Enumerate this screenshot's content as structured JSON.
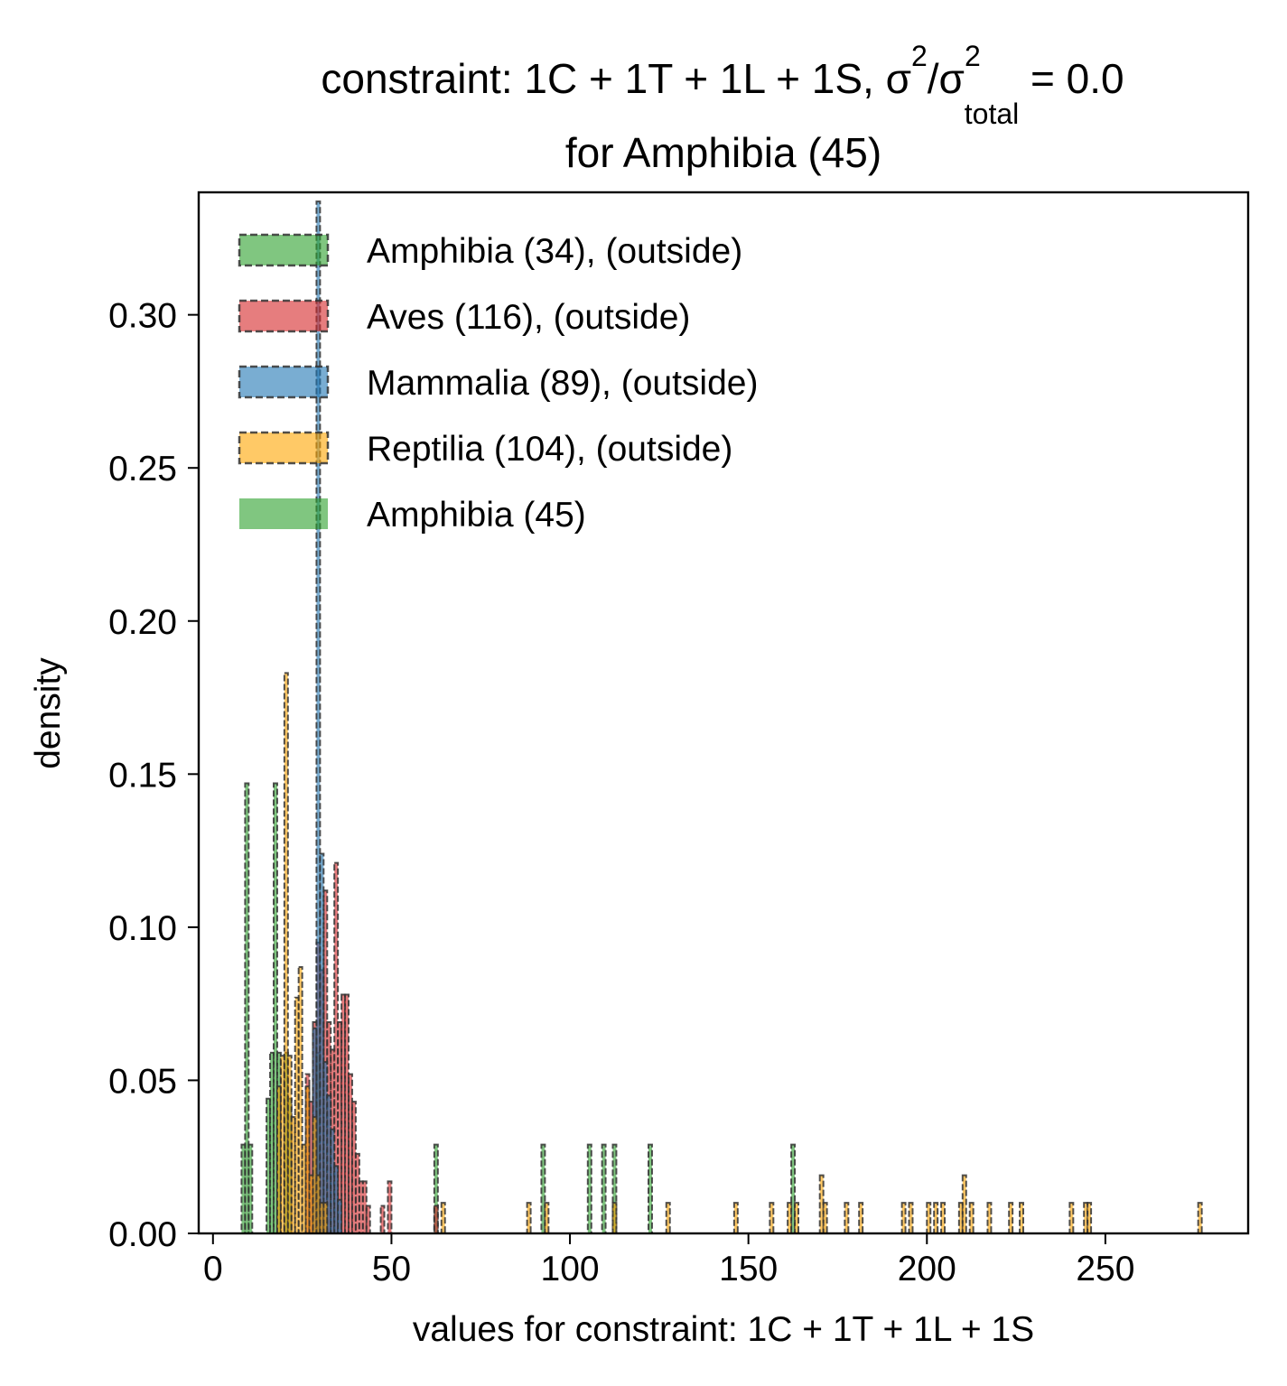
{
  "chart_data": {
    "type": "bar",
    "title": {
      "line1_main": "constraint: 1C + 1T + 1L + 1S, σ",
      "line1_sup1": "2",
      "line1_mid": "/σ",
      "line1_sup2": "2",
      "line1_sub": "total",
      "line1_end": " =  0.0",
      "line2": "for Amphibia (45)"
    },
    "xlabel": "values for constraint: 1C + 1T + 1L + 1S",
    "ylabel": "density",
    "xlim": [
      -4,
      290
    ],
    "ylim": [
      0,
      0.34
    ],
    "xticks": [
      {
        "value": 0,
        "label": "0"
      },
      {
        "value": 50,
        "label": "50"
      },
      {
        "value": 100,
        "label": "100"
      },
      {
        "value": 150,
        "label": "150"
      },
      {
        "value": 200,
        "label": "200"
      },
      {
        "value": 250,
        "label": "250"
      }
    ],
    "yticks": [
      {
        "value": 0.0,
        "label": "0.00"
      },
      {
        "value": 0.05,
        "label": "0.05"
      },
      {
        "value": 0.1,
        "label": "0.10"
      },
      {
        "value": 0.15,
        "label": "0.15"
      },
      {
        "value": 0.2,
        "label": "0.20"
      },
      {
        "value": 0.25,
        "label": "0.25"
      },
      {
        "value": 0.3,
        "label": "0.30"
      }
    ],
    "legend_position": "upper-left",
    "legend": [
      {
        "label": "Amphibia (34), (outside)",
        "style": "dashed",
        "color": "#2ca02c"
      },
      {
        "label": "Aves (116), (outside)",
        "style": "dashed",
        "color": "#d62728"
      },
      {
        "label": "Mammalia (89), (outside)",
        "style": "dashed",
        "color": "#1f77b4"
      },
      {
        "label": "Reptilia (104), (outside)",
        "style": "dashed",
        "color": "#ffa500"
      },
      {
        "label": "Amphibia (45)",
        "style": "solid",
        "color": "#2ca02c"
      }
    ],
    "series": [
      {
        "name": "Amphibia (34), (outside)",
        "color": "#2ca02c",
        "style": "dashed",
        "bins": [
          [
            8.5,
            0.029
          ],
          [
            9.5,
            0.147
          ],
          [
            10.5,
            0.029
          ],
          [
            15.5,
            0.044
          ],
          [
            16.5,
            0.059
          ],
          [
            17.5,
            0.147
          ],
          [
            18.5,
            0.059
          ],
          [
            20.5,
            0.059
          ],
          [
            21.5,
            0.044
          ],
          [
            29.5,
            0.059
          ],
          [
            62.5,
            0.029
          ],
          [
            92.5,
            0.029
          ],
          [
            105.5,
            0.029
          ],
          [
            109.5,
            0.029
          ],
          [
            112.5,
            0.029
          ],
          [
            122.5,
            0.029
          ],
          [
            162.5,
            0.029
          ]
        ]
      },
      {
        "name": "Aves (116), (outside)",
        "color": "#d62728",
        "style": "dashed",
        "bins": [
          [
            26.5,
            0.052
          ],
          [
            27.5,
            0.043
          ],
          [
            28.5,
            0.069
          ],
          [
            29.5,
            0.095
          ],
          [
            30.5,
            0.086
          ],
          [
            31.5,
            0.112
          ],
          [
            32.5,
            0.069
          ],
          [
            33.5,
            0.06
          ],
          [
            34.5,
            0.121
          ],
          [
            35.5,
            0.069
          ],
          [
            36.5,
            0.078
          ],
          [
            37.5,
            0.078
          ],
          [
            38.5,
            0.052
          ],
          [
            39.5,
            0.043
          ],
          [
            40.5,
            0.026
          ],
          [
            41.5,
            0.017
          ],
          [
            42.5,
            0.017
          ],
          [
            43.5,
            0.009
          ],
          [
            47.5,
            0.009
          ],
          [
            49.5,
            0.017
          ],
          [
            62.5,
            0.009
          ]
        ]
      },
      {
        "name": "Mammalia (89), (outside)",
        "color": "#1f77b4",
        "style": "dashed",
        "bins": [
          [
            28.5,
            0.067
          ],
          [
            29.5,
            0.337
          ],
          [
            30.5,
            0.124
          ],
          [
            31.5,
            0.056
          ],
          [
            32.5,
            0.045
          ],
          [
            33.5,
            0.034
          ],
          [
            34.5,
            0.022
          ],
          [
            35.5,
            0.011
          ]
        ]
      },
      {
        "name": "Reptilia (104), (outside)",
        "color": "#ffa500",
        "style": "dashed",
        "bins": [
          [
            18.5,
            0.048
          ],
          [
            19.5,
            0.058
          ],
          [
            20.5,
            0.183
          ],
          [
            21.5,
            0.058
          ],
          [
            22.5,
            0.038
          ],
          [
            23.5,
            0.077
          ],
          [
            24.5,
            0.087
          ],
          [
            25.5,
            0.029
          ],
          [
            26.5,
            0.048
          ],
          [
            27.5,
            0.019
          ],
          [
            28.5,
            0.038
          ],
          [
            29.5,
            0.019
          ],
          [
            30.5,
            0.01
          ],
          [
            31.5,
            0.01
          ],
          [
            64.5,
            0.01
          ],
          [
            88.5,
            0.01
          ],
          [
            93.5,
            0.01
          ],
          [
            112.5,
            0.01
          ],
          [
            127.5,
            0.01
          ],
          [
            146.5,
            0.01
          ],
          [
            156.5,
            0.01
          ],
          [
            161.5,
            0.01
          ],
          [
            163.5,
            0.01
          ],
          [
            170.5,
            0.019
          ],
          [
            171.5,
            0.01
          ],
          [
            177.5,
            0.01
          ],
          [
            181.5,
            0.01
          ],
          [
            193.5,
            0.01
          ],
          [
            195.5,
            0.01
          ],
          [
            200.5,
            0.01
          ],
          [
            202.5,
            0.01
          ],
          [
            204.5,
            0.01
          ],
          [
            209.5,
            0.01
          ],
          [
            210.5,
            0.019
          ],
          [
            212.5,
            0.01
          ],
          [
            217.5,
            0.01
          ],
          [
            223.5,
            0.01
          ],
          [
            226.5,
            0.01
          ],
          [
            240.5,
            0.01
          ],
          [
            244.5,
            0.01
          ],
          [
            245.5,
            0.01
          ],
          [
            276.5,
            0.01
          ]
        ]
      }
    ]
  }
}
